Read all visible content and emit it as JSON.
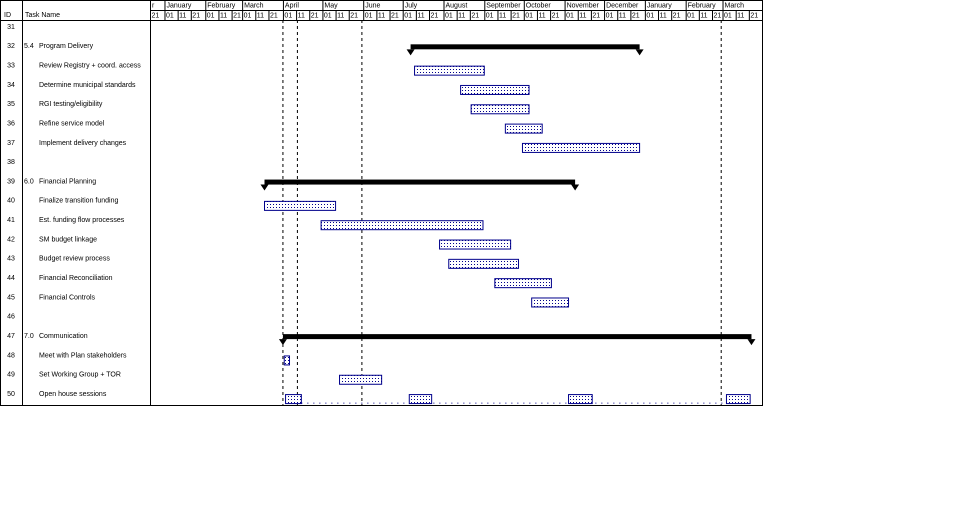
{
  "chart_data": {
    "type": "gantt",
    "columns": [
      "ID",
      "Task Name"
    ],
    "xlim": [
      0,
      465
    ],
    "month_ticks": [
      {
        "value": 0,
        "label": "r"
      },
      {
        "value": 11,
        "label": "January"
      },
      {
        "value": 42,
        "label": "February"
      },
      {
        "value": 70,
        "label": "March"
      },
      {
        "value": 101,
        "label": "April"
      },
      {
        "value": 131,
        "label": "May"
      },
      {
        "value": 162,
        "label": "June"
      },
      {
        "value": 192,
        "label": "July"
      },
      {
        "value": 223,
        "label": "August"
      },
      {
        "value": 254,
        "label": "September"
      },
      {
        "value": 284,
        "label": "October"
      },
      {
        "value": 315,
        "label": "November"
      },
      {
        "value": 345,
        "label": "December"
      },
      {
        "value": 376,
        "label": "January"
      },
      {
        "value": 407,
        "label": "February"
      },
      {
        "value": 435,
        "label": "March"
      }
    ],
    "xticks": [
      {
        "value": 0,
        "label": "21"
      },
      {
        "value": 11,
        "label": "01"
      },
      {
        "value": 21,
        "label": "11"
      },
      {
        "value": 31,
        "label": "21"
      },
      {
        "value": 42,
        "label": "01"
      },
      {
        "value": 52,
        "label": "11"
      },
      {
        "value": 62,
        "label": "21"
      },
      {
        "value": 70,
        "label": "01"
      },
      {
        "value": 80,
        "label": "11"
      },
      {
        "value": 90,
        "label": "21"
      },
      {
        "value": 101,
        "label": "01"
      },
      {
        "value": 111,
        "label": "11"
      },
      {
        "value": 121,
        "label": "21"
      },
      {
        "value": 131,
        "label": "01"
      },
      {
        "value": 141,
        "label": "11"
      },
      {
        "value": 151,
        "label": "21"
      },
      {
        "value": 162,
        "label": "01"
      },
      {
        "value": 172,
        "label": "11"
      },
      {
        "value": 182,
        "label": "21"
      },
      {
        "value": 192,
        "label": "01"
      },
      {
        "value": 202,
        "label": "11"
      },
      {
        "value": 212,
        "label": "21"
      },
      {
        "value": 223,
        "label": "01"
      },
      {
        "value": 233,
        "label": "11"
      },
      {
        "value": 243,
        "label": "21"
      },
      {
        "value": 254,
        "label": "01"
      },
      {
        "value": 264,
        "label": "11"
      },
      {
        "value": 274,
        "label": "21"
      },
      {
        "value": 284,
        "label": "01"
      },
      {
        "value": 294,
        "label": "11"
      },
      {
        "value": 304,
        "label": "21"
      },
      {
        "value": 315,
        "label": "01"
      },
      {
        "value": 325,
        "label": "11"
      },
      {
        "value": 335,
        "label": "21"
      },
      {
        "value": 345,
        "label": "01"
      },
      {
        "value": 355,
        "label": "11"
      },
      {
        "value": 365,
        "label": "21"
      },
      {
        "value": 376,
        "label": "01"
      },
      {
        "value": 386,
        "label": "11"
      },
      {
        "value": 396,
        "label": "21"
      },
      {
        "value": 407,
        "label": "01"
      },
      {
        "value": 417,
        "label": "11"
      },
      {
        "value": 427,
        "label": "21"
      },
      {
        "value": 435,
        "label": "01"
      },
      {
        "value": 445,
        "label": "11"
      },
      {
        "value": 455,
        "label": "21"
      }
    ],
    "markers": [
      101,
      112,
      161,
      434
    ],
    "bar_color": "#00008b",
    "tasks": [
      {
        "id": "31",
        "name": null
      },
      {
        "id": "32",
        "wbs": "5.4",
        "name": "Program Delivery",
        "summary": true,
        "start": 198,
        "end": 372
      },
      {
        "id": "33",
        "name": "Review Registry + coord. access",
        "start": 201,
        "end": 254
      },
      {
        "id": "34",
        "name": "Determine municipal standards",
        "start": 236,
        "end": 288
      },
      {
        "id": "35",
        "name": "RGI testing/eligibility",
        "start": 244,
        "end": 288
      },
      {
        "id": "36",
        "name": "Refine service model",
        "start": 270,
        "end": 298
      },
      {
        "id": "37",
        "name": "Implement delivery changes",
        "start": 283,
        "end": 372
      },
      {
        "id": "38",
        "name": null
      },
      {
        "id": "39",
        "wbs": "6.0",
        "name": "Financial Planning",
        "summary": true,
        "start": 87,
        "end": 323
      },
      {
        "id": "40",
        "name": "Finalize transition funding",
        "start": 87,
        "end": 141
      },
      {
        "id": "41",
        "name": "Est. funding flow processes",
        "start": 130,
        "end": 253
      },
      {
        "id": "42",
        "name": "SM budget linkage",
        "start": 220,
        "end": 274
      },
      {
        "id": "43",
        "name": "Budget review process",
        "start": 227,
        "end": 280
      },
      {
        "id": "44",
        "name": "Financial Reconciliation",
        "start": 262,
        "end": 305
      },
      {
        "id": "45",
        "name": "Financial Controls",
        "start": 290,
        "end": 318
      },
      {
        "id": "46",
        "name": null
      },
      {
        "id": "47",
        "wbs": "7.0",
        "name": "Communication",
        "summary": true,
        "start": 101,
        "end": 457
      },
      {
        "id": "48",
        "name": "Meet with Plan stakeholders",
        "start": 102,
        "end": 106
      },
      {
        "id": "49",
        "name": "Set Working Group + TOR",
        "start": 144,
        "end": 176
      },
      {
        "id": "50",
        "name": "Open house sessions",
        "segments": [
          [
            103,
            115
          ],
          [
            197,
            214
          ],
          [
            318,
            336
          ],
          [
            438,
            456
          ]
        ]
      }
    ]
  }
}
